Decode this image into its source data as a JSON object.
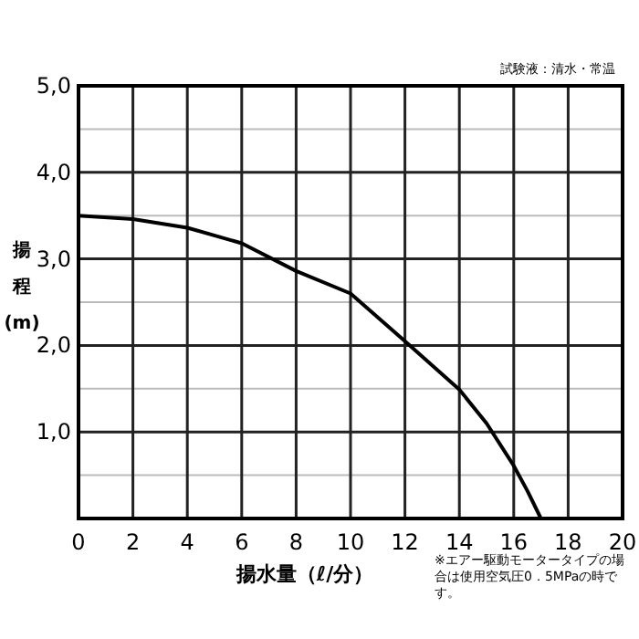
{
  "chart_data": {
    "type": "line",
    "xlabel": "揚水量（ℓ/分）",
    "ylabel": "揚程(m)",
    "annotations": [
      "試験液：清水・常温",
      "※エアー駆動モータータイプの場合は使用空気圧0．5MPaの時です。"
    ],
    "x": [
      0,
      2,
      4,
      6,
      8,
      10,
      12,
      14,
      15,
      16,
      16.5,
      17
    ],
    "series": [
      {
        "color": "#000000",
        "values": [
          3.5,
          3.46,
          3.36,
          3.18,
          2.86,
          2.6,
          2.05,
          1.49,
          1.1,
          0.61,
          0.32,
          0
        ]
      }
    ],
    "xlim": [
      0,
      20
    ],
    "xticks": [
      0,
      2,
      4,
      6,
      8,
      10,
      12,
      14,
      16,
      18,
      20
    ],
    "ylim": [
      0,
      5
    ],
    "yticks": [
      {
        "value": 0,
        "label": null
      },
      {
        "value": 0.5,
        "label": null
      },
      {
        "value": 1,
        "label": "1,0"
      },
      {
        "value": 1.5,
        "label": null
      },
      {
        "value": 2,
        "label": "2,0"
      },
      {
        "value": 2.5,
        "label": null
      },
      {
        "value": 3,
        "label": "3,0"
      },
      {
        "value": 3.5,
        "label": null
      },
      {
        "value": 4,
        "label": "4,0"
      },
      {
        "value": 4.5,
        "label": null
      },
      {
        "value": 5,
        "label": "5,0"
      }
    ],
    "grid": true,
    "marker": "none",
    "line_style": "solid"
  }
}
